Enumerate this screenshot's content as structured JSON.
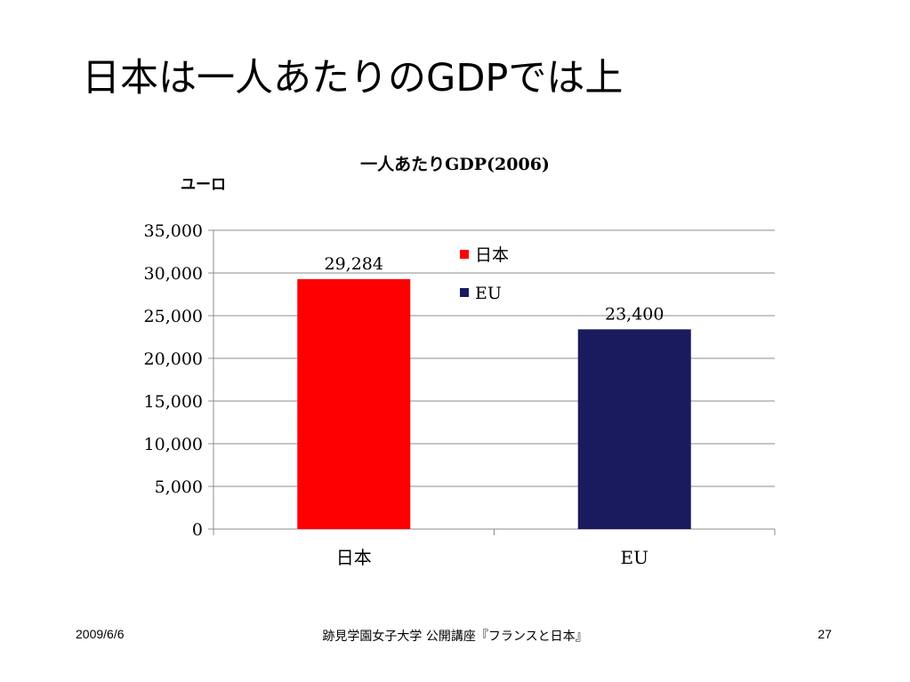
{
  "slide": {
    "title": "日本は一人あたりのGDPでは上",
    "footer_date": "2009/6/6",
    "footer_center": "跡見学園女子大学 公開講座『フランスと日本』",
    "page_number": "27"
  },
  "chart_data": {
    "type": "bar",
    "title": "一人あたりGDP(2006)",
    "ylabel": "ユーロ",
    "xlabel": "",
    "categories": [
      "日本",
      "EU"
    ],
    "values": [
      29284,
      23400
    ],
    "data_labels": [
      "29,284",
      "23,400"
    ],
    "colors": [
      "#ff0000",
      "#1a1a5e"
    ],
    "ylim": [
      0,
      35000
    ],
    "yticks": [
      0,
      5000,
      10000,
      15000,
      20000,
      25000,
      30000,
      35000
    ],
    "ytick_labels": [
      "0",
      "5,000",
      "10,000",
      "15,000",
      "20,000",
      "25,000",
      "30,000",
      "35,000"
    ],
    "grid": true,
    "legend": {
      "placement": "top-center inside plot",
      "entries": [
        {
          "label": "日本",
          "color": "#ff0000"
        },
        {
          "label": "EU",
          "color": "#1a1a5e"
        }
      ]
    }
  }
}
